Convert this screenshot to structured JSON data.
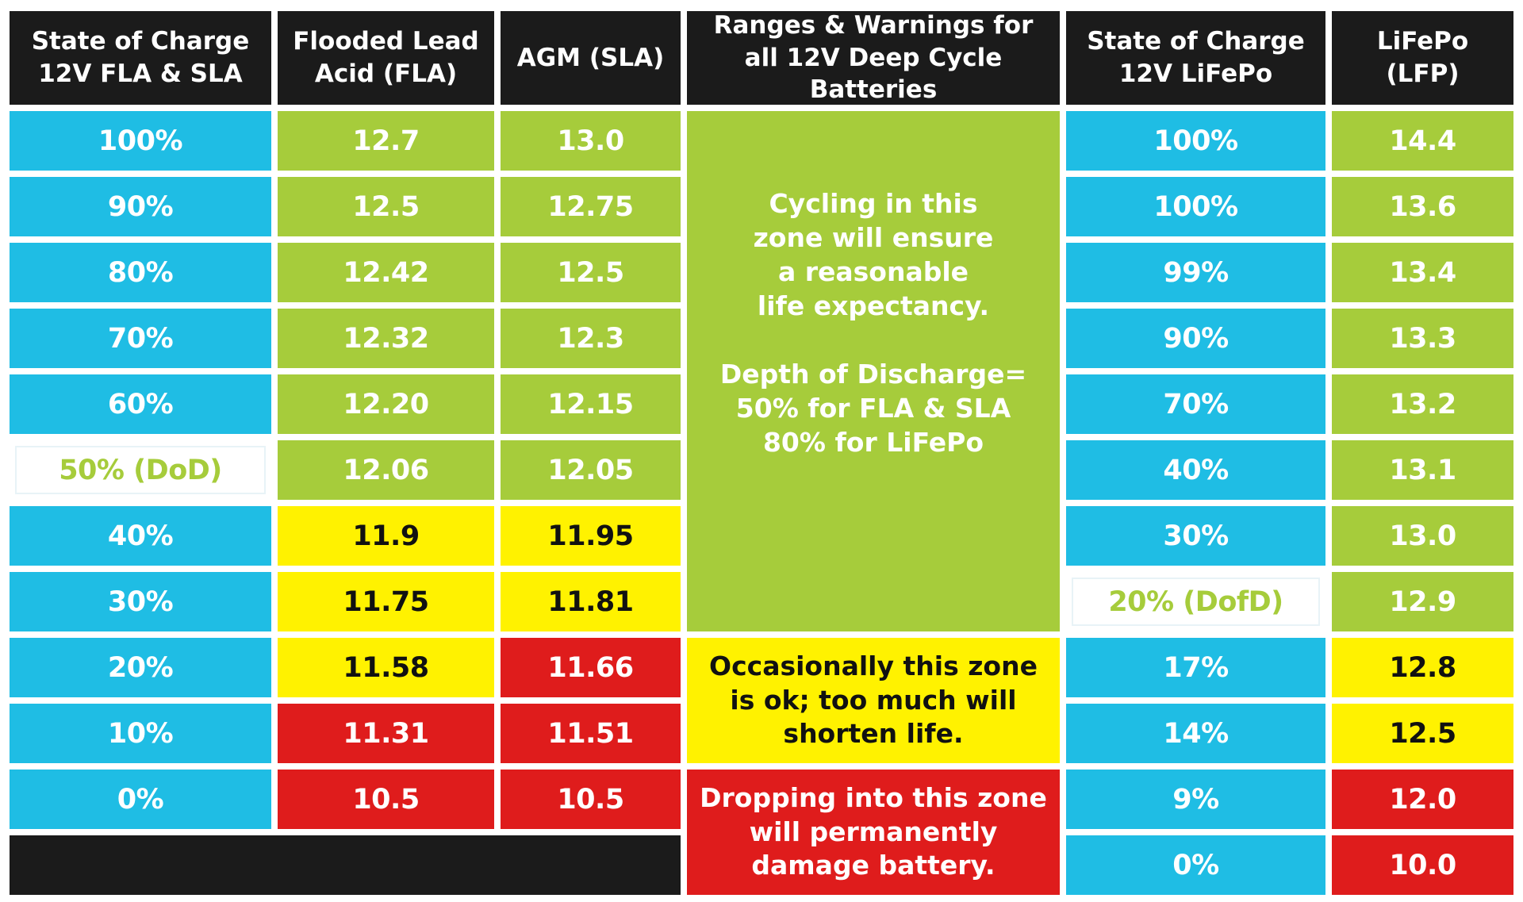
{
  "headers": {
    "soc_lead": "State of Charge\n12V FLA & SLA",
    "fla": "Flooded Lead\nAcid (FLA)",
    "agm": "AGM (SLA)",
    "ranges": "Ranges & Warnings for\nall 12V Deep Cycle Batteries",
    "soc_lifepo": "State of Charge\n12V LiFePo",
    "lfp": "LiFePo\n(LFP)"
  },
  "lead_rows": [
    {
      "soc": "100%",
      "fla": "12.7",
      "agm": "13.0"
    },
    {
      "soc": "90%",
      "fla": "12.5",
      "agm": "12.75"
    },
    {
      "soc": "80%",
      "fla": "12.42",
      "agm": "12.5"
    },
    {
      "soc": "70%",
      "fla": "12.32",
      "agm": "12.3"
    },
    {
      "soc": "60%",
      "fla": "12.20",
      "agm": "12.15"
    },
    {
      "soc": "50% (DoD)",
      "fla": "12.06",
      "agm": "12.05"
    },
    {
      "soc": "40%",
      "fla": "11.9",
      "agm": "11.95"
    },
    {
      "soc": "30%",
      "fla": "11.75",
      "agm": "11.81"
    },
    {
      "soc": "20%",
      "fla": "11.58",
      "agm": "11.66"
    },
    {
      "soc": "10%",
      "fla": "11.31",
      "agm": "11.51"
    },
    {
      "soc": "0%",
      "fla": "10.5",
      "agm": "10.5"
    }
  ],
  "lifepo_rows": [
    {
      "soc": "100%",
      "lfp": "14.4"
    },
    {
      "soc": "100%",
      "lfp": "13.6"
    },
    {
      "soc": "99%",
      "lfp": "13.4"
    },
    {
      "soc": "90%",
      "lfp": "13.3"
    },
    {
      "soc": "70%",
      "lfp": "13.2"
    },
    {
      "soc": "40%",
      "lfp": "13.1"
    },
    {
      "soc": "30%",
      "lfp": "13.0"
    },
    {
      "soc": "20% (DofD)",
      "lfp": "12.9"
    },
    {
      "soc": "17%",
      "lfp": "12.8"
    },
    {
      "soc": "14%",
      "lfp": "12.5"
    },
    {
      "soc": "9%",
      "lfp": "12.0"
    },
    {
      "soc": "0%",
      "lfp": "10.0"
    }
  ],
  "zones": {
    "green": "Cycling in this\nzone will ensure\na reasonable\nlife expectancy.\n\nDepth of Discharge=\n50% for FLA & SLA\n80% for LiFePo",
    "yellow": "Occasionally this zone\nis ok; too much will\nshorten life.",
    "red": "Dropping into this zone\nwill permanently\ndamage battery."
  },
  "colors": {
    "header": "#1b1b1b",
    "soc": "#1fbde4",
    "good": "#a6cc3b",
    "warning": "#fff200",
    "danger": "#df1c1c"
  }
}
